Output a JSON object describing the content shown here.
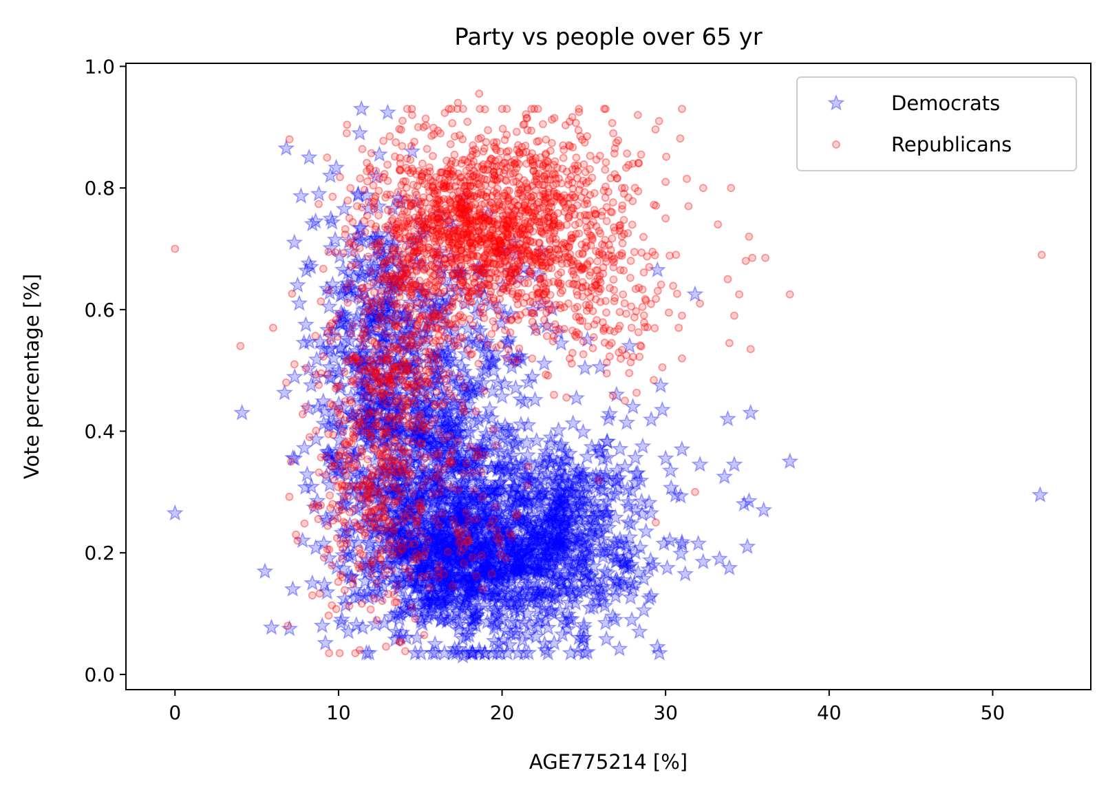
{
  "chart_data": {
    "type": "scatter",
    "title": "Party vs people over 65 yr",
    "xlabel": "AGE775214 [%]",
    "ylabel": "Vote percentage [%]",
    "xlim": [
      -3,
      56
    ],
    "ylim": [
      -0.025,
      1.005
    ],
    "xticks": [
      0,
      10,
      20,
      30,
      40,
      50
    ],
    "xtick_labels": [
      "0",
      "10",
      "20",
      "30",
      "40",
      "50"
    ],
    "yticks": [
      0.0,
      0.2,
      0.4,
      0.6,
      0.8,
      1.0
    ],
    "ytick_labels": [
      "0.0",
      "0.2",
      "0.4",
      "0.6",
      "0.8",
      "1.0"
    ],
    "grid": false,
    "legend_position": "top-right",
    "series": [
      {
        "name": "Democrats",
        "marker": "star",
        "color": "#0000ff",
        "points": [
          [
            0.0,
            0.265
          ],
          [
            4.1,
            0.43
          ],
          [
            5.9,
            0.077
          ],
          [
            6.8,
            0.865
          ],
          [
            6.7,
            0.463
          ],
          [
            7.0,
            0.075
          ],
          [
            7.2,
            0.14
          ],
          [
            7.3,
            0.71
          ],
          [
            7.5,
            0.64
          ],
          [
            7.6,
            0.61
          ],
          [
            7.8,
            0.22
          ],
          [
            8.0,
            0.575
          ],
          [
            8.2,
            0.85
          ],
          [
            8.3,
            0.67
          ],
          [
            8.4,
            0.15
          ],
          [
            8.6,
            0.745
          ],
          [
            8.8,
            0.79
          ],
          [
            9.0,
            0.08
          ],
          [
            9.1,
            0.215
          ],
          [
            9.3,
            0.135
          ],
          [
            9.5,
            0.82
          ],
          [
            9.7,
            0.41
          ],
          [
            10.2,
            0.09
          ],
          [
            10.6,
            0.07
          ],
          [
            11.3,
            0.89
          ],
          [
            11.4,
            0.93
          ],
          [
            11.2,
            0.79
          ],
          [
            12.5,
            0.855
          ],
          [
            13.5,
            0.07
          ],
          [
            14.5,
            0.86
          ],
          [
            14.8,
            0.06
          ],
          [
            15.9,
            0.05
          ],
          [
            17.6,
            0.03
          ],
          [
            18.6,
            0.04
          ],
          [
            19.8,
            0.05
          ],
          [
            21.6,
            0.065
          ],
          [
            22.6,
            0.05
          ],
          [
            24.7,
            0.06
          ],
          [
            25.0,
            0.06
          ],
          [
            26.5,
            0.42
          ],
          [
            27.0,
            0.46
          ],
          [
            27.8,
            0.54
          ],
          [
            28.0,
            0.44
          ],
          [
            28.4,
            0.07
          ],
          [
            28.6,
            0.375
          ],
          [
            28.8,
            0.235
          ],
          [
            29.0,
            0.125
          ],
          [
            29.1,
            0.265
          ],
          [
            29.5,
            0.045
          ],
          [
            29.7,
            0.475
          ],
          [
            29.8,
            0.435
          ],
          [
            30.0,
            0.355
          ],
          [
            29.9,
            0.215
          ],
          [
            30.1,
            0.175
          ],
          [
            30.3,
            0.335
          ],
          [
            29.5,
            0.665
          ],
          [
            31.0,
            0.37
          ],
          [
            31.2,
            0.165
          ],
          [
            31.8,
            0.625
          ],
          [
            32.0,
            0.215
          ],
          [
            32.1,
            0.345
          ],
          [
            32.3,
            0.185
          ],
          [
            33.3,
            0.19
          ],
          [
            33.6,
            0.325
          ],
          [
            33.8,
            0.42
          ],
          [
            33.9,
            0.175
          ],
          [
            34.2,
            0.345
          ],
          [
            34.8,
            0.28
          ],
          [
            35.1,
            0.285
          ],
          [
            35.2,
            0.43
          ],
          [
            35.0,
            0.21
          ],
          [
            36.0,
            0.27
          ],
          [
            37.6,
            0.35
          ],
          [
            52.9,
            0.295
          ],
          [
            30.6,
            0.295
          ],
          [
            28.2,
            0.33
          ],
          [
            27.5,
            0.175
          ]
        ],
        "clusters": [
          {
            "cx": 18.5,
            "cy": 0.2,
            "sx": 3.5,
            "sy": 0.075,
            "n": 1150
          },
          {
            "cx": 15.5,
            "cy": 0.36,
            "sx": 3.0,
            "sy": 0.11,
            "n": 600
          },
          {
            "cx": 24.0,
            "cy": 0.24,
            "sx": 2.6,
            "sy": 0.09,
            "n": 380
          },
          {
            "cx": 12.0,
            "cy": 0.52,
            "sx": 1.6,
            "sy": 0.13,
            "n": 300
          },
          {
            "cx": 16.5,
            "cy": 0.6,
            "sx": 3.0,
            "sy": 0.08,
            "n": 180
          }
        ]
      },
      {
        "name": "Republicans",
        "marker": "circle",
        "color": "#ff0000",
        "points": [
          [
            0.0,
            0.7
          ],
          [
            4.0,
            0.54
          ],
          [
            6.0,
            0.57
          ],
          [
            6.8,
            0.48
          ],
          [
            6.9,
            0.08
          ],
          [
            7.0,
            0.88
          ],
          [
            7.1,
            0.35
          ],
          [
            7.3,
            0.51
          ],
          [
            7.4,
            0.23
          ],
          [
            7.5,
            0.22
          ],
          [
            8.0,
            0.44
          ],
          [
            8.5,
            0.28
          ],
          [
            8.4,
            0.13
          ],
          [
            9.3,
            0.85
          ],
          [
            10.5,
            0.89
          ],
          [
            11.3,
            0.04
          ],
          [
            13.5,
            0.875
          ],
          [
            14.5,
            0.92
          ],
          [
            15.2,
            0.9
          ],
          [
            17.3,
            0.94
          ],
          [
            18.6,
            0.955
          ],
          [
            20.0,
            0.93
          ],
          [
            21.5,
            0.915
          ],
          [
            22.5,
            0.905
          ],
          [
            23.2,
            0.915
          ],
          [
            24.7,
            0.925
          ],
          [
            25.2,
            0.885
          ],
          [
            26.3,
            0.83
          ],
          [
            26.8,
            0.89
          ],
          [
            27.5,
            0.8
          ],
          [
            28.0,
            0.84
          ],
          [
            28.3,
            0.92
          ],
          [
            28.5,
            0.855
          ],
          [
            29.0,
            0.67
          ],
          [
            29.2,
            0.695
          ],
          [
            29.6,
            0.91
          ],
          [
            29.8,
            0.505
          ],
          [
            30.0,
            0.75
          ],
          [
            30.0,
            0.81
          ],
          [
            30.2,
            0.595
          ],
          [
            30.8,
            0.57
          ],
          [
            31.0,
            0.59
          ],
          [
            31.3,
            0.815
          ],
          [
            31.4,
            0.77
          ],
          [
            31.8,
            0.3
          ],
          [
            32.1,
            0.61
          ],
          [
            32.3,
            0.8
          ],
          [
            33.2,
            0.74
          ],
          [
            33.8,
            0.65
          ],
          [
            33.9,
            0.545
          ],
          [
            34.0,
            0.8
          ],
          [
            34.2,
            0.59
          ],
          [
            34.5,
            0.625
          ],
          [
            34.9,
            0.68
          ],
          [
            35.1,
            0.72
          ],
          [
            35.2,
            0.535
          ],
          [
            35.3,
            0.685
          ],
          [
            36.1,
            0.685
          ],
          [
            37.6,
            0.625
          ],
          [
            53.0,
            0.69
          ],
          [
            26.4,
            0.495
          ],
          [
            26.7,
            0.545
          ],
          [
            27.6,
            0.525
          ],
          [
            25.9,
            0.32
          ],
          [
            29.4,
            0.25
          ],
          [
            28.8,
            0.615
          ]
        ],
        "clusters": [
          {
            "cx": 18.0,
            "cy": 0.74,
            "sx": 3.4,
            "sy": 0.075,
            "n": 1250
          },
          {
            "cx": 14.0,
            "cy": 0.54,
            "sx": 2.3,
            "sy": 0.1,
            "n": 420
          },
          {
            "cx": 23.5,
            "cy": 0.72,
            "sx": 2.6,
            "sy": 0.1,
            "n": 480
          },
          {
            "cx": 12.0,
            "cy": 0.32,
            "sx": 1.6,
            "sy": 0.12,
            "n": 300
          },
          {
            "cx": 16.0,
            "cy": 0.25,
            "sx": 2.3,
            "sy": 0.07,
            "n": 130
          },
          {
            "cx": 27.0,
            "cy": 0.6,
            "sx": 1.8,
            "sy": 0.06,
            "n": 70
          }
        ]
      }
    ]
  }
}
